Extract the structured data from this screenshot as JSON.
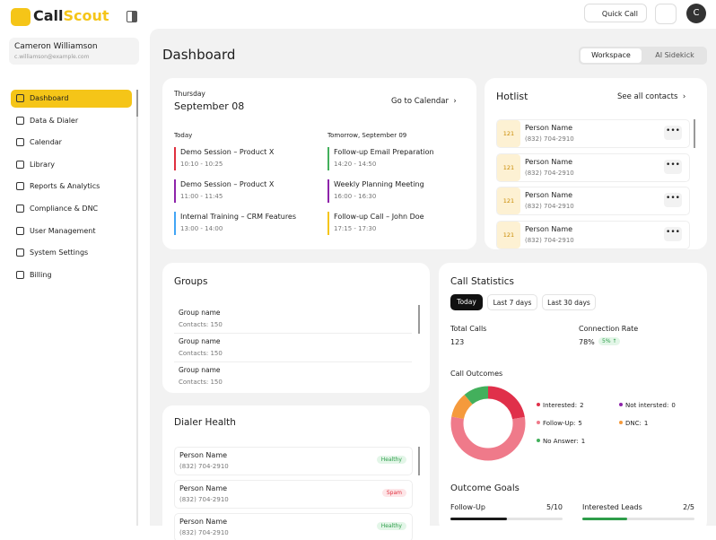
{
  "header": {
    "logo_prefix": "Call",
    "logo_suffix": "Scout",
    "quick_call": "Quick Call",
    "avatar": "C"
  },
  "sidebar": {
    "user_name": "Cameron Williamson",
    "user_email": "c.williamson@example.com",
    "nav": [
      "Dashboard",
      "Data & Dialer",
      "Calendar",
      "Library",
      "Reports & Analytics",
      "Compliance & DNC",
      "User Management",
      "System Settings",
      "Billing"
    ]
  },
  "page": {
    "title": "Dashboard",
    "tabs": [
      "Workspace",
      "AI Sidekick"
    ]
  },
  "calendar": {
    "day": "Thursday",
    "date": "September 08",
    "link": "Go to Calendar",
    "columns": [
      {
        "heading": "Today",
        "events": [
          {
            "title": "Demo Session – Product X",
            "time": "10:10 - 10:25",
            "color": "#e0303f"
          },
          {
            "title": "Demo Session – Product X",
            "time": "11:00 - 11:45",
            "color": "#8e24aa"
          },
          {
            "title": "Internal Training – CRM Features",
            "time": "13:00 - 14:00",
            "color": "#42a5f5"
          }
        ]
      },
      {
        "heading": "Tomorrow, September 09",
        "events": [
          {
            "title": "Follow-up Email Preparation",
            "time": "14:20 - 14:50",
            "color": "#43b05c"
          },
          {
            "title": "Weekly Planning Meeting",
            "time": "16:00 - 16:30",
            "color": "#8e24aa"
          },
          {
            "title": "Follow-up Call – John Doe",
            "time": "17:15 - 17:30",
            "color": "#f5c518"
          }
        ]
      }
    ]
  },
  "hotlist": {
    "title": "Hotlist",
    "link": "See all contacts",
    "contacts": [
      {
        "badge": "121",
        "name": "Person Name",
        "phone": "(832) 704-2910"
      },
      {
        "badge": "121",
        "name": "Person Name",
        "phone": "(832) 704-2910"
      },
      {
        "badge": "121",
        "name": "Person Name",
        "phone": "(832) 704-2910"
      },
      {
        "badge": "121",
        "name": "Person Name",
        "phone": "(832) 704-2910"
      }
    ]
  },
  "groups": {
    "title": "Groups",
    "items": [
      {
        "name": "Group name",
        "contacts": "Contacts: 150"
      },
      {
        "name": "Group name",
        "contacts": "Contacts: 150"
      },
      {
        "name": "Group name",
        "contacts": "Contacts: 150"
      }
    ]
  },
  "dialer_health": {
    "title": "Dialer Health",
    "items": [
      {
        "name": "Person Name",
        "phone": "(832) 704-2910",
        "status": "Healthy",
        "status_color": "#2e9d4a",
        "status_bg": "#e3f6e8"
      },
      {
        "name": "Person Name",
        "phone": "(832) 704-2910",
        "status": "Spam",
        "status_color": "#e0303f",
        "status_bg": "#fde6e8"
      },
      {
        "name": "Person Name",
        "phone": "(832) 704-2910",
        "status": "Healthy",
        "status_color": "#2e9d4a",
        "status_bg": "#e3f6e8"
      }
    ]
  },
  "call_statistics": {
    "title": "Call Statistics",
    "ranges": [
      "Today",
      "Last 7 days",
      "Last 30 days"
    ],
    "total_calls_label": "Total Calls",
    "total_calls": "123",
    "connection_rate_label": "Connection Rate",
    "connection_rate": "78%",
    "connection_change": "5% ↑",
    "outcomes_title": "Call Outcomes",
    "outcomes": [
      {
        "name": "Interested:",
        "value": 2,
        "color": "#e0304a"
      },
      {
        "name": "Not intersted:",
        "value": 0,
        "color": "#8e24aa"
      },
      {
        "name": "Follow-Up:",
        "value": 5,
        "color": "#ef7a8a"
      },
      {
        "name": "DNC:",
        "value": 1,
        "color": "#f59a3c"
      },
      {
        "name": "No Answer:",
        "value": 1,
        "color": "#43b05c"
      }
    ],
    "goals_title": "Outcome Goals",
    "goals": [
      {
        "name": "Follow-Up",
        "progress": "5/10",
        "current": 5,
        "target": 10,
        "color": "#1a1a1a"
      },
      {
        "name": "Interested Leads",
        "progress": "2/5",
        "current": 2,
        "target": 5,
        "color": "#2e9d4a"
      }
    ]
  }
}
